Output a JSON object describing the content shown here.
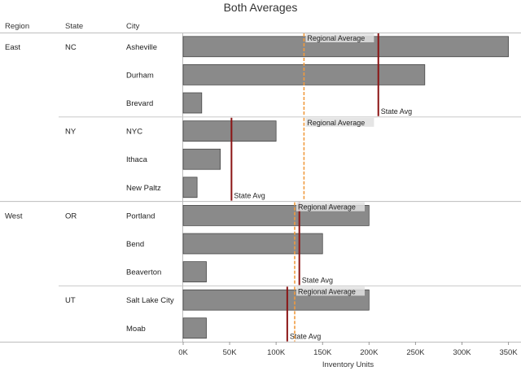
{
  "chart_data": {
    "type": "bar",
    "title": "Both Averages",
    "orientation": "horizontal",
    "row_headers": [
      "Region",
      "State",
      "City"
    ],
    "xlabel": "Inventory Units",
    "xlim": [
      0,
      360000
    ],
    "x_ticks": [
      {
        "value": 0,
        "label": "0K"
      },
      {
        "value": 50000,
        "label": "50K"
      },
      {
        "value": 100000,
        "label": "100K"
      },
      {
        "value": 150000,
        "label": "150K"
      },
      {
        "value": 200000,
        "label": "200K"
      },
      {
        "value": 250000,
        "label": "250K"
      },
      {
        "value": 300000,
        "label": "300K"
      },
      {
        "value": 350000,
        "label": "350K"
      }
    ],
    "bar_color": "#8a8a8a",
    "bar_stroke": "#3a3a3a",
    "state_avg_color": "#8b1414",
    "regional_avg_color": "#f09a3e",
    "state_avg_label": "State Avg",
    "regional_avg_label": "Regional Average",
    "regions": [
      {
        "region": "East",
        "regional_average": 130000,
        "states": [
          {
            "state": "NC",
            "state_average": 210000,
            "cities": [
              {
                "city": "Asheville",
                "value": 350000
              },
              {
                "city": "Durham",
                "value": 260000
              },
              {
                "city": "Brevard",
                "value": 20000
              }
            ]
          },
          {
            "state": "NY",
            "state_average": 52000,
            "cities": [
              {
                "city": "NYC",
                "value": 100000
              },
              {
                "city": "Ithaca",
                "value": 40000
              },
              {
                "city": "New Paltz",
                "value": 15000
              }
            ]
          }
        ]
      },
      {
        "region": "West",
        "regional_average": 120000,
        "states": [
          {
            "state": "OR",
            "state_average": 125000,
            "cities": [
              {
                "city": "Portland",
                "value": 200000
              },
              {
                "city": "Bend",
                "value": 150000
              },
              {
                "city": "Beaverton",
                "value": 25000
              }
            ]
          },
          {
            "state": "UT",
            "state_average": 112000,
            "cities": [
              {
                "city": "Salt Lake City",
                "value": 200000
              },
              {
                "city": "Moab",
                "value": 25000
              }
            ]
          }
        ]
      }
    ]
  }
}
